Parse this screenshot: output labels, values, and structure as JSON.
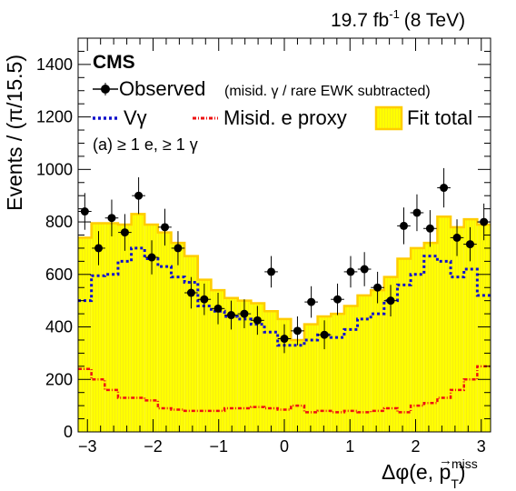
{
  "chart_data": {
    "type": "bar",
    "header_right": {
      "lumi": "19.7 fb",
      "lumi_exp": "-1",
      "energy": "(8 TeV)"
    },
    "experiment": "CMS",
    "category": "(a) ≥ 1 e, ≥ 1 γ",
    "xlabel": {
      "base": "Δφ(e, p",
      "arrow": "→",
      "sub": "T",
      "sup": "miss",
      "close": ")"
    },
    "ylabel": "Events / (π/15.5)",
    "xlim": [
      -3.1416,
      3.1416
    ],
    "ylim": [
      0,
      1500
    ],
    "x_ticks": [
      -3,
      -2,
      -1,
      0,
      1,
      2,
      3
    ],
    "y_ticks": [
      0,
      200,
      400,
      600,
      800,
      1000,
      1200,
      1400
    ],
    "legend": [
      {
        "key": "observed",
        "label": "Observed",
        "note": "(misid. γ / rare EWK subtracted)",
        "style": "marker"
      },
      {
        "key": "vgamma",
        "label": "Vγ",
        "style": "blue-dashed"
      },
      {
        "key": "misid",
        "label": "Misid. e proxy",
        "style": "red-dotted"
      },
      {
        "key": "fit",
        "label": "Fit total",
        "style": "yellow-fill"
      }
    ],
    "colors": {
      "fit_fill": "#ffff00",
      "fit_edge": "#ffcc00",
      "vgamma": "#1010cc",
      "misid": "#ee1111",
      "data": "#000000"
    },
    "bins_n": 31,
    "series": [
      {
        "name": "Fit total",
        "key": "fit",
        "values": [
          740,
          795,
          795,
          790,
          830,
          790,
          760,
          720,
          670,
          580,
          540,
          510,
          500,
          490,
          460,
          430,
          350,
          410,
          440,
          450,
          480,
          520,
          540,
          590,
          660,
          700,
          720,
          820,
          780,
          810,
          790
        ]
      },
      {
        "name": "Vγ",
        "key": "vgamma",
        "values": [
          500,
          595,
          600,
          650,
          700,
          660,
          630,
          590,
          570,
          480,
          460,
          440,
          430,
          410,
          380,
          330,
          330,
          350,
          370,
          360,
          390,
          430,
          450,
          500,
          560,
          600,
          670,
          650,
          590,
          620,
          520
        ]
      },
      {
        "name": "Misid. e proxy",
        "key": "misid",
        "values": [
          240,
          200,
          160,
          130,
          130,
          120,
          90,
          85,
          80,
          80,
          80,
          90,
          90,
          95,
          90,
          85,
          100,
          75,
          80,
          75,
          80,
          75,
          80,
          90,
          75,
          100,
          110,
          130,
          160,
          200,
          250
        ]
      },
      {
        "name": "Observed",
        "key": "observed",
        "points": [
          {
            "x": -3.04,
            "y": 840,
            "err": 70
          },
          {
            "x": -2.83,
            "y": 700,
            "err": 65
          },
          {
            "x": -2.63,
            "y": 815,
            "err": 70
          },
          {
            "x": -2.43,
            "y": 760,
            "err": 70
          },
          {
            "x": -2.22,
            "y": 900,
            "err": 70
          },
          {
            "x": -2.02,
            "y": 665,
            "err": 65
          },
          {
            "x": -1.82,
            "y": 780,
            "err": 70
          },
          {
            "x": -1.62,
            "y": 700,
            "err": 65
          },
          {
            "x": -1.42,
            "y": 530,
            "err": 60
          },
          {
            "x": -1.22,
            "y": 505,
            "err": 60
          },
          {
            "x": -1.01,
            "y": 470,
            "err": 60
          },
          {
            "x": -0.81,
            "y": 445,
            "err": 55
          },
          {
            "x": -0.61,
            "y": 450,
            "err": 55
          },
          {
            "x": -0.41,
            "y": 425,
            "err": 55
          },
          {
            "x": -0.2,
            "y": 610,
            "err": 60
          },
          {
            "x": 0.0,
            "y": 355,
            "err": 55
          },
          {
            "x": 0.2,
            "y": 385,
            "err": 55
          },
          {
            "x": 0.41,
            "y": 495,
            "err": 60
          },
          {
            "x": 0.61,
            "y": 370,
            "err": 55
          },
          {
            "x": 0.81,
            "y": 505,
            "err": 60
          },
          {
            "x": 1.01,
            "y": 610,
            "err": 60
          },
          {
            "x": 1.22,
            "y": 620,
            "err": 65
          },
          {
            "x": 1.42,
            "y": 550,
            "err": 60
          },
          {
            "x": 1.62,
            "y": 500,
            "err": 60
          },
          {
            "x": 1.82,
            "y": 785,
            "err": 70
          },
          {
            "x": 2.02,
            "y": 835,
            "err": 70
          },
          {
            "x": 2.22,
            "y": 775,
            "err": 70
          },
          {
            "x": 2.43,
            "y": 930,
            "err": 75
          },
          {
            "x": 2.63,
            "y": 740,
            "err": 70
          },
          {
            "x": 2.83,
            "y": 715,
            "err": 65
          },
          {
            "x": 3.04,
            "y": 800,
            "err": 70
          }
        ]
      }
    ]
  }
}
